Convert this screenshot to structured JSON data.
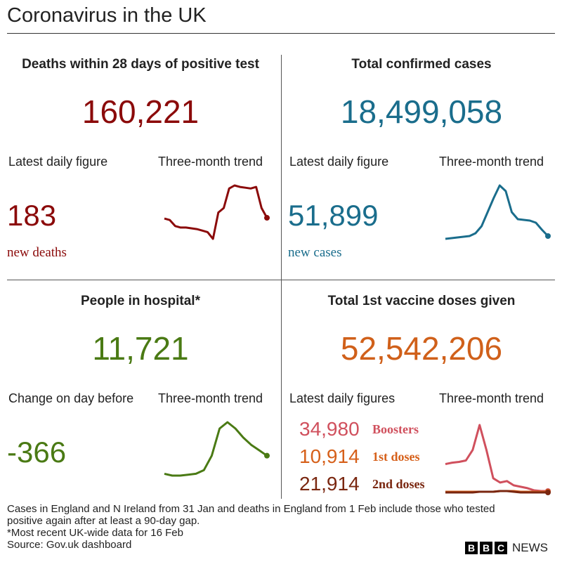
{
  "header": {
    "title": "Coronavirus in the UK"
  },
  "panels": [
    {
      "title": "Deaths within 28 days of positive test",
      "total": "160,221",
      "color": "#8b0a0a",
      "latest_label": "Latest daily figure",
      "trend_label": "Three-month trend",
      "figures": [
        {
          "value": "183",
          "label": "new deaths",
          "color": "#8b0a0a",
          "trend": [
            34,
            32,
            24,
            22,
            22,
            21,
            20,
            18,
            16,
            7,
            42,
            48,
            74,
            78,
            76,
            75,
            74,
            76,
            48,
            35
          ]
        }
      ]
    },
    {
      "title": "Total confirmed cases",
      "total": "18,499,058",
      "color": "#1a6d8c",
      "latest_label": "Latest daily figure",
      "trend_label": "Three-month trend",
      "figures": [
        {
          "value": "51,899",
          "label": "new cases",
          "color": "#1a6d8c",
          "trend": [
            7,
            8,
            9,
            10,
            11,
            15,
            25,
            45,
            65,
            83,
            75,
            45,
            35,
            34,
            33,
            30,
            20,
            11
          ]
        }
      ]
    },
    {
      "title": "People in hospital*",
      "total": "11,721",
      "color": "#4a7a14",
      "latest_label": "Change on day before",
      "trend_label": "Three-month trend",
      "figures": [
        {
          "value": "-366",
          "color": "#4a7a14",
          "trend": [
            10,
            8,
            8,
            9,
            10,
            14,
            30,
            60,
            67,
            60,
            50,
            42,
            36,
            30
          ]
        }
      ]
    },
    {
      "title": "Total 1st vaccine doses given",
      "total": "52,542,206",
      "color": "#d0601a",
      "latest_label": "Latest daily figures",
      "trend_label": "Three-month trend",
      "figures": [
        {
          "value": "34,980",
          "label": "Boosters",
          "color": "#d0505d",
          "trend": [
            45,
            47,
            48,
            50,
            65,
            100,
            65,
            25,
            19,
            21,
            15,
            13,
            11,
            8,
            7,
            7
          ]
        },
        {
          "value": "10,914",
          "label": "1st doses",
          "color": "#d6601a",
          "trend": [
            6,
            6,
            6,
            6,
            6,
            6,
            6,
            6,
            7,
            7,
            7,
            6,
            6,
            6,
            6,
            6
          ]
        },
        {
          "value": "21,914",
          "label": "2nd doses",
          "color": "#7a2710",
          "trend": [
            5,
            5,
            5,
            5,
            5,
            6,
            6,
            6,
            7,
            7,
            6,
            5,
            5,
            5,
            5,
            5
          ]
        }
      ]
    }
  ],
  "footer": {
    "notes": [
      "Cases in England and N Ireland from 31 Jan and deaths in England from 1 Feb include those who tested positive again after at least a 90-day gap.",
      "*Most recent UK-wide data for 16 Feb"
    ],
    "source": "Source: Gov.uk dashboard",
    "brand_letters": [
      "B",
      "B",
      "C"
    ],
    "brand_name": "NEWS"
  }
}
